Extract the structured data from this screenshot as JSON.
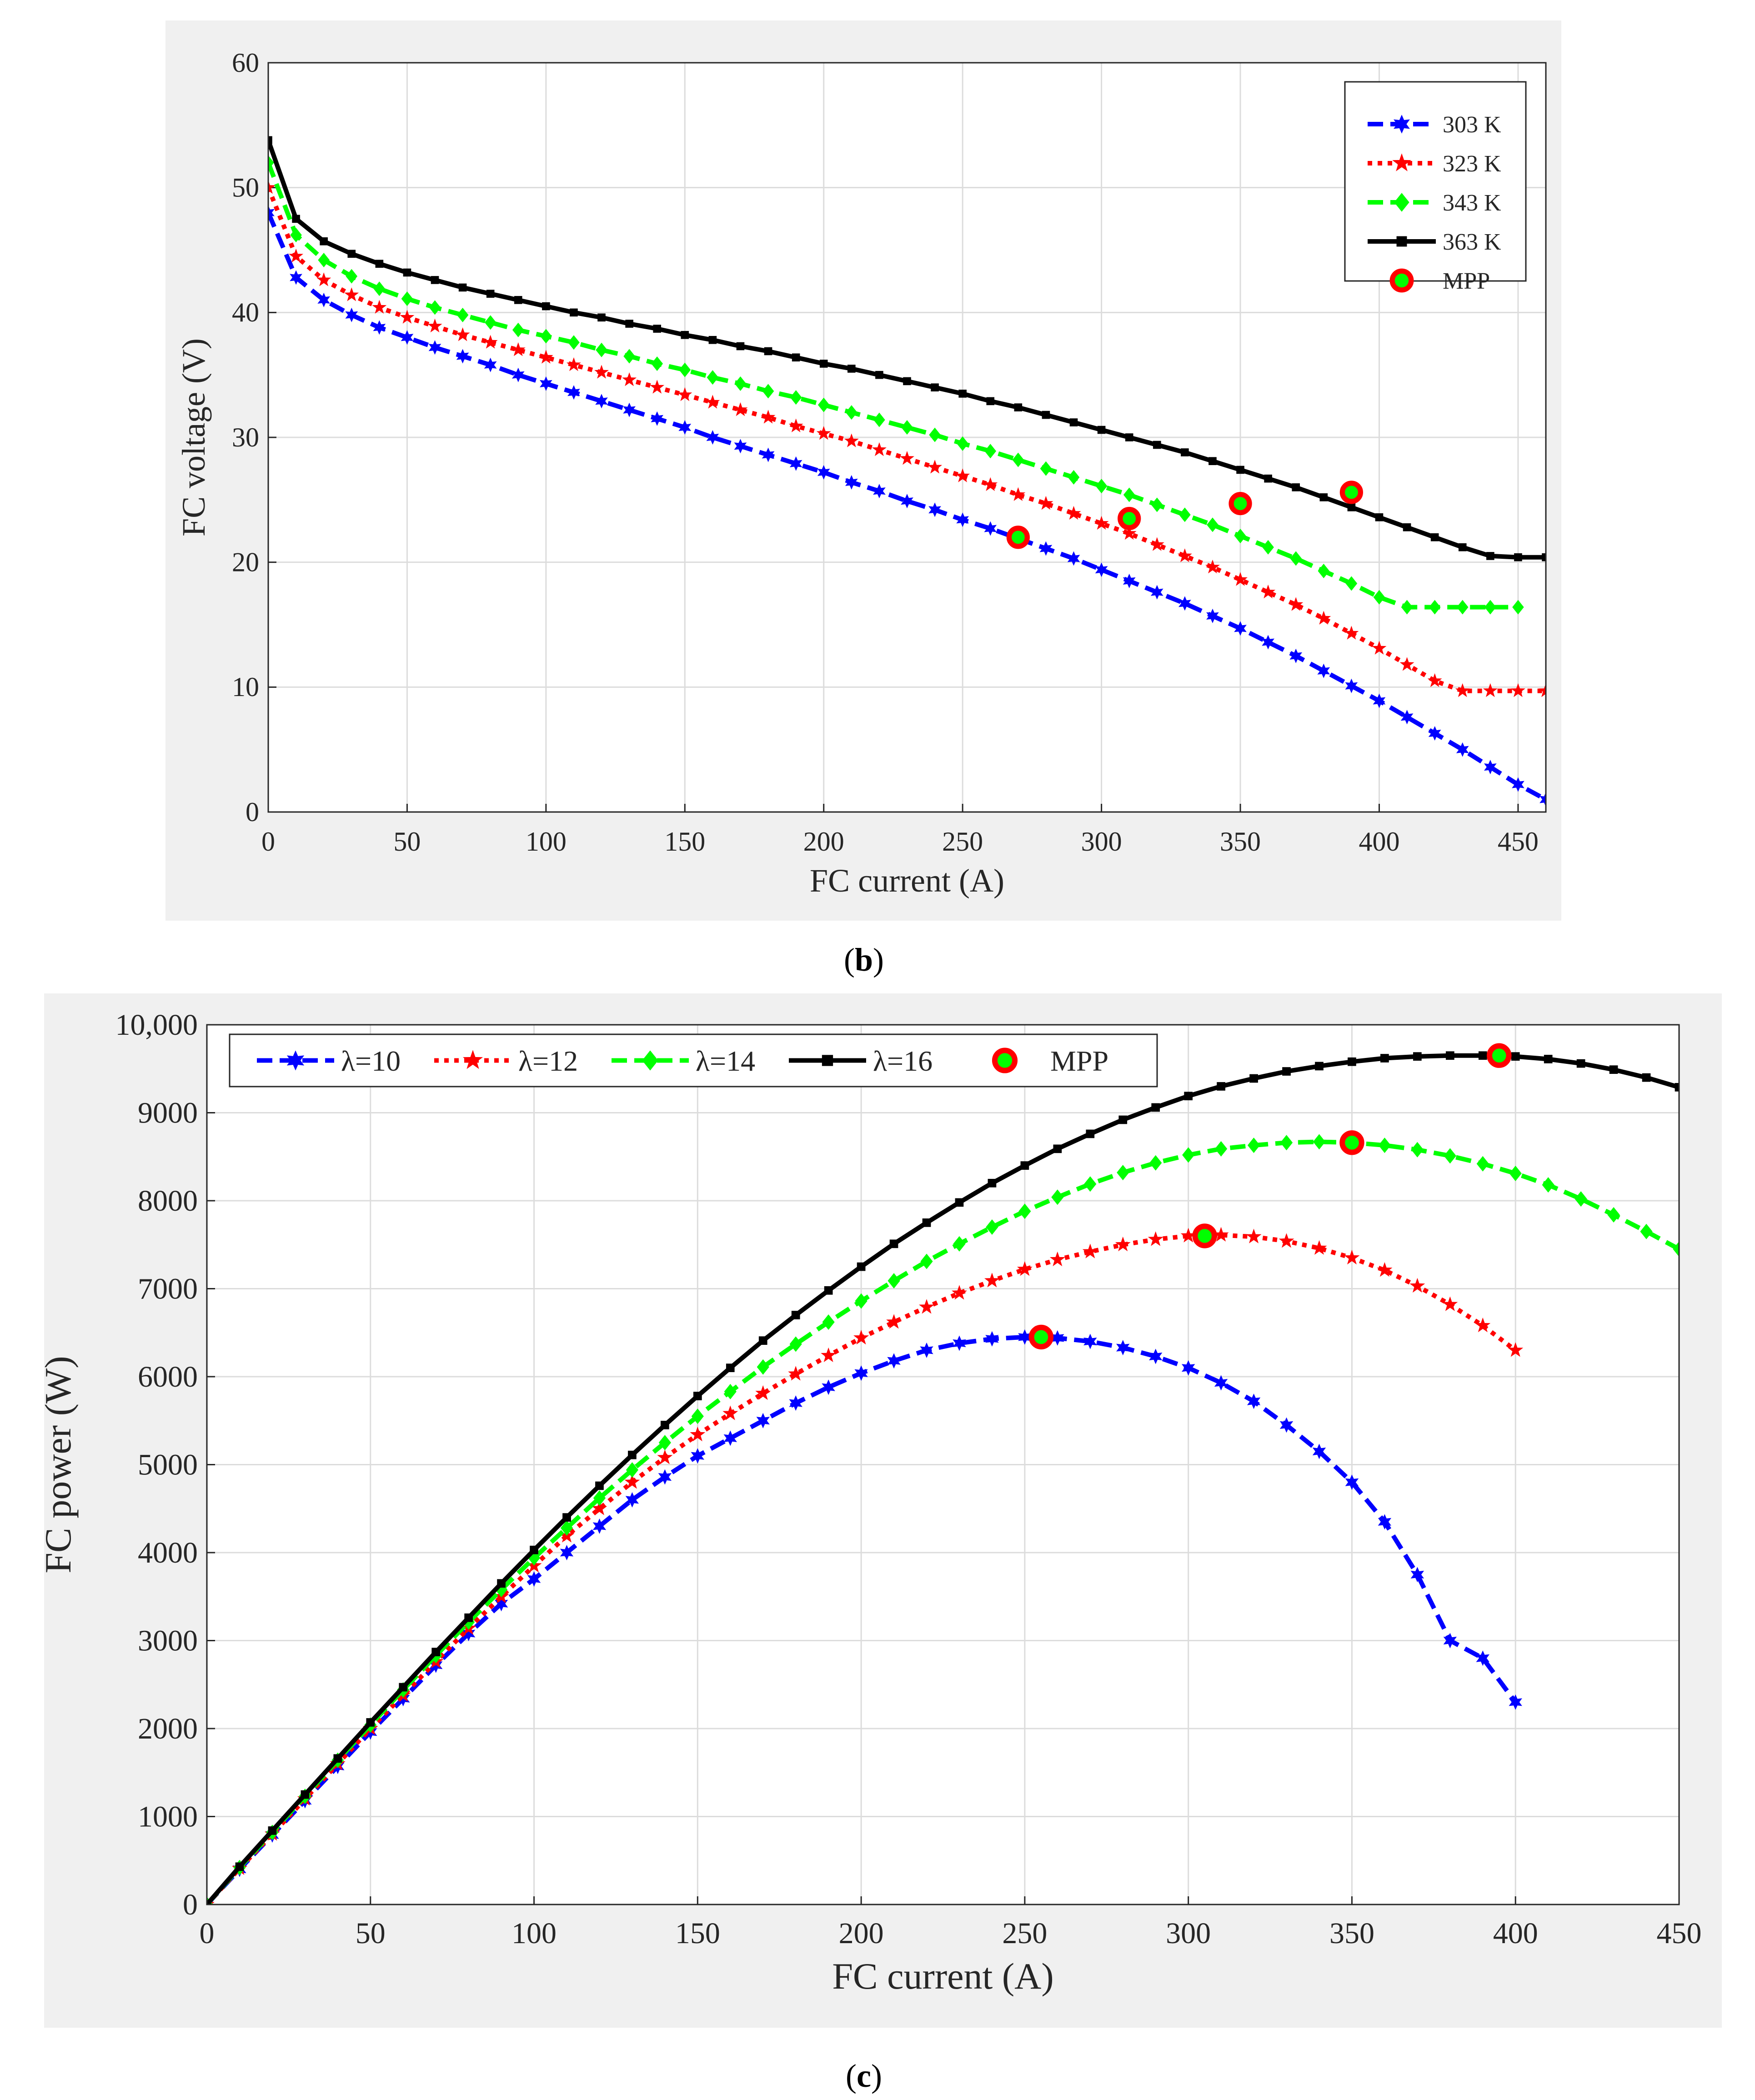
{
  "chart_data": [
    {
      "panel": "b",
      "type": "line",
      "xlabel": "FC current (A)",
      "ylabel": "FC voltage (V)",
      "xlim": [
        0,
        460
      ],
      "ylim": [
        0,
        60
      ],
      "xticks": [
        0,
        50,
        100,
        150,
        200,
        250,
        300,
        350,
        400,
        450
      ],
      "yticks": [
        0,
        10,
        20,
        30,
        40,
        50,
        60
      ],
      "grid": true,
      "legend_position": "top-right",
      "legend": [
        "303 K",
        "323 K",
        "343 K",
        "363 K",
        "MPP"
      ],
      "series": [
        {
          "name": "303 K",
          "color": "#0000ff",
          "dash": "dashed",
          "marker": "star6",
          "x": [
            0,
            10,
            20,
            30,
            40,
            50,
            60,
            70,
            80,
            90,
            100,
            110,
            120,
            130,
            140,
            150,
            160,
            170,
            180,
            190,
            200,
            210,
            220,
            230,
            240,
            250,
            260,
            270,
            280,
            290,
            300,
            310,
            320,
            330,
            340,
            350,
            360,
            370,
            380,
            390,
            400,
            410,
            420,
            430,
            440,
            450,
            460
          ],
          "y": [
            48,
            42.8,
            41,
            39.8,
            38.8,
            38,
            37.2,
            36.5,
            35.8,
            35,
            34.3,
            33.6,
            32.9,
            32.2,
            31.5,
            30.8,
            30,
            29.3,
            28.6,
            27.9,
            27.2,
            26.4,
            25.7,
            24.9,
            24.2,
            23.4,
            22.7,
            21.9,
            21.1,
            20.3,
            19.4,
            18.5,
            17.6,
            16.7,
            15.7,
            14.7,
            13.6,
            12.5,
            11.3,
            10.1,
            8.9,
            7.6,
            6.3,
            5,
            3.6,
            2.2,
            1
          ]
        },
        {
          "name": "323 K",
          "color": "#ff0000",
          "dash": "dotted",
          "marker": "star5",
          "x": [
            0,
            10,
            20,
            30,
            40,
            50,
            60,
            70,
            80,
            90,
            100,
            110,
            120,
            130,
            140,
            150,
            160,
            170,
            180,
            190,
            200,
            210,
            220,
            230,
            240,
            250,
            260,
            270,
            280,
            290,
            300,
            310,
            320,
            330,
            340,
            350,
            360,
            370,
            380,
            390,
            400,
            410,
            420,
            430,
            440,
            450,
            460
          ],
          "y": [
            50,
            44.5,
            42.6,
            41.4,
            40.4,
            39.6,
            38.9,
            38.2,
            37.6,
            37,
            36.4,
            35.8,
            35.2,
            34.6,
            34,
            33.4,
            32.8,
            32.2,
            31.6,
            30.9,
            30.3,
            29.7,
            29,
            28.3,
            27.6,
            26.9,
            26.2,
            25.4,
            24.7,
            23.9,
            23.1,
            22.3,
            21.4,
            20.5,
            19.6,
            18.6,
            17.6,
            16.6,
            15.5,
            14.3,
            13.1,
            11.8,
            10.5,
            9.7,
            9.7,
            9.7,
            9.7
          ]
        },
        {
          "name": "343 K",
          "color": "#00ff00",
          "dash": "dashed",
          "marker": "diamond",
          "x": [
            0,
            10,
            20,
            30,
            40,
            50,
            60,
            70,
            80,
            90,
            100,
            110,
            120,
            130,
            140,
            150,
            160,
            170,
            180,
            190,
            200,
            210,
            220,
            230,
            240,
            250,
            260,
            270,
            280,
            290,
            300,
            310,
            320,
            330,
            340,
            350,
            360,
            370,
            380,
            390,
            400,
            410,
            420,
            430,
            440,
            450
          ],
          "y": [
            52,
            46.2,
            44.2,
            42.9,
            41.9,
            41.1,
            40.4,
            39.8,
            39.2,
            38.6,
            38.1,
            37.6,
            37,
            36.5,
            35.9,
            35.4,
            34.8,
            34.3,
            33.7,
            33.2,
            32.6,
            32,
            31.4,
            30.8,
            30.2,
            29.5,
            28.9,
            28.2,
            27.5,
            26.8,
            26.1,
            25.4,
            24.6,
            23.8,
            23,
            22.1,
            21.2,
            20.3,
            19.3,
            18.3,
            17.2,
            16.4,
            16.4,
            16.4,
            16.4,
            16.4
          ]
        },
        {
          "name": "363 K",
          "color": "#000000",
          "dash": "solid",
          "marker": "square",
          "x": [
            0,
            10,
            20,
            30,
            40,
            50,
            60,
            70,
            80,
            90,
            100,
            110,
            120,
            130,
            140,
            150,
            160,
            170,
            180,
            190,
            200,
            210,
            220,
            230,
            240,
            250,
            260,
            270,
            280,
            290,
            300,
            310,
            320,
            330,
            340,
            350,
            360,
            370,
            380,
            390,
            400,
            410,
            420,
            430,
            440,
            450,
            460
          ],
          "y": [
            53.8,
            47.5,
            45.7,
            44.7,
            43.9,
            43.2,
            42.6,
            42,
            41.5,
            41,
            40.5,
            40,
            39.6,
            39.1,
            38.7,
            38.2,
            37.8,
            37.3,
            36.9,
            36.4,
            35.9,
            35.5,
            35,
            34.5,
            34,
            33.5,
            32.9,
            32.4,
            31.8,
            31.2,
            30.6,
            30,
            29.4,
            28.8,
            28.1,
            27.4,
            26.7,
            26,
            25.2,
            24.4,
            23.6,
            22.8,
            22,
            21.2,
            20.5,
            20.4,
            20.4
          ]
        }
      ],
      "mpp": [
        {
          "x": 270,
          "y": 22
        },
        {
          "x": 310,
          "y": 23.5
        },
        {
          "x": 350,
          "y": 24.7
        },
        {
          "x": 390,
          "y": 25.6
        }
      ]
    },
    {
      "panel": "c",
      "type": "line",
      "xlabel": "FC current (A)",
      "ylabel": "FC power (W)",
      "xlim": [
        0,
        450
      ],
      "ylim": [
        0,
        10000
      ],
      "xticks": [
        0,
        50,
        100,
        150,
        200,
        250,
        300,
        350,
        400,
        450
      ],
      "yticks": [
        0,
        1000,
        2000,
        3000,
        4000,
        5000,
        6000,
        7000,
        8000,
        9000,
        10000
      ],
      "ytick_labels": [
        "0",
        "1000",
        "2000",
        "3000",
        "4000",
        "5000",
        "6000",
        "7000",
        "8000",
        "9000",
        "10,000"
      ],
      "grid": true,
      "legend_position": "top-left",
      "legend": [
        "λ=10",
        "λ=12",
        "λ=14",
        "λ=16",
        "MPP"
      ],
      "series": [
        {
          "name": "λ=10",
          "color": "#0000ff",
          "dash": "dashed",
          "marker": "star6",
          "x": [
            0,
            10,
            20,
            30,
            40,
            50,
            60,
            70,
            80,
            90,
            100,
            110,
            120,
            130,
            140,
            150,
            160,
            170,
            180,
            190,
            200,
            210,
            220,
            230,
            240,
            250,
            260,
            270,
            280,
            290,
            300,
            310,
            320,
            330,
            340,
            350,
            360,
            370,
            380,
            390,
            400
          ],
          "y": [
            0,
            400,
            790,
            1180,
            1570,
            1960,
            2340,
            2720,
            3080,
            3420,
            3700,
            4000,
            4300,
            4600,
            4860,
            5100,
            5300,
            5500,
            5700,
            5880,
            6040,
            6180,
            6300,
            6380,
            6430,
            6450,
            6440,
            6400,
            6330,
            6230,
            6100,
            5930,
            5720,
            5450,
            5150,
            4800,
            4350,
            3750,
            3000,
            2800,
            2300
          ]
        },
        {
          "name": "λ=12",
          "color": "#ff0000",
          "dash": "dotted",
          "marker": "star5",
          "x": [
            0,
            10,
            20,
            30,
            40,
            50,
            60,
            70,
            80,
            90,
            100,
            110,
            120,
            130,
            140,
            150,
            160,
            170,
            180,
            190,
            200,
            210,
            220,
            230,
            240,
            250,
            260,
            270,
            280,
            290,
            300,
            310,
            320,
            330,
            340,
            350,
            360,
            370,
            380,
            390,
            400
          ],
          "y": [
            0,
            410,
            800,
            1200,
            1600,
            2000,
            2380,
            2760,
            3140,
            3500,
            3850,
            4190,
            4500,
            4800,
            5080,
            5340,
            5580,
            5810,
            6030,
            6240,
            6440,
            6620,
            6790,
            6950,
            7090,
            7220,
            7330,
            7420,
            7500,
            7560,
            7600,
            7610,
            7590,
            7540,
            7460,
            7350,
            7210,
            7030,
            6820,
            6580,
            6300
          ]
        },
        {
          "name": "λ=14",
          "color": "#00ff00",
          "dash": "dashed",
          "marker": "diamond",
          "x": [
            0,
            10,
            20,
            30,
            40,
            50,
            60,
            70,
            80,
            90,
            100,
            110,
            120,
            130,
            140,
            150,
            160,
            170,
            180,
            190,
            200,
            210,
            220,
            230,
            240,
            250,
            260,
            270,
            280,
            290,
            300,
            310,
            320,
            330,
            340,
            350,
            360,
            370,
            380,
            390,
            400,
            410,
            420,
            430,
            440,
            450
          ],
          "y": [
            0,
            420,
            820,
            1230,
            1640,
            2040,
            2440,
            2830,
            3210,
            3580,
            3940,
            4280,
            4620,
            4940,
            5250,
            5550,
            5830,
            6110,
            6370,
            6620,
            6860,
            7090,
            7310,
            7510,
            7700,
            7880,
            8040,
            8190,
            8320,
            8430,
            8520,
            8590,
            8630,
            8660,
            8670,
            8660,
            8630,
            8580,
            8510,
            8420,
            8310,
            8180,
            8020,
            7840,
            7650,
            7450
          ]
        },
        {
          "name": "λ=16",
          "color": "#000000",
          "dash": "solid",
          "marker": "square",
          "x": [
            0,
            10,
            20,
            30,
            40,
            50,
            60,
            70,
            80,
            90,
            100,
            110,
            120,
            130,
            140,
            150,
            160,
            170,
            180,
            190,
            200,
            210,
            220,
            230,
            240,
            250,
            260,
            270,
            280,
            290,
            300,
            310,
            320,
            330,
            340,
            350,
            360,
            370,
            380,
            390,
            400,
            410,
            420,
            430,
            440,
            450
          ],
          "y": [
            0,
            430,
            840,
            1250,
            1660,
            2070,
            2470,
            2870,
            3260,
            3650,
            4030,
            4400,
            4760,
            5110,
            5450,
            5780,
            6100,
            6410,
            6700,
            6980,
            7250,
            7510,
            7750,
            7980,
            8200,
            8400,
            8590,
            8760,
            8920,
            9060,
            9190,
            9300,
            9390,
            9470,
            9530,
            9580,
            9620,
            9640,
            9650,
            9650,
            9640,
            9610,
            9560,
            9490,
            9400,
            9290
          ]
        }
      ],
      "mpp": [
        {
          "x": 255,
          "y": 6450
        },
        {
          "x": 305,
          "y": 7600
        },
        {
          "x": 350,
          "y": 8660
        },
        {
          "x": 395,
          "y": 9650
        }
      ]
    }
  ],
  "captions": {
    "b": "b",
    "c": "c"
  }
}
